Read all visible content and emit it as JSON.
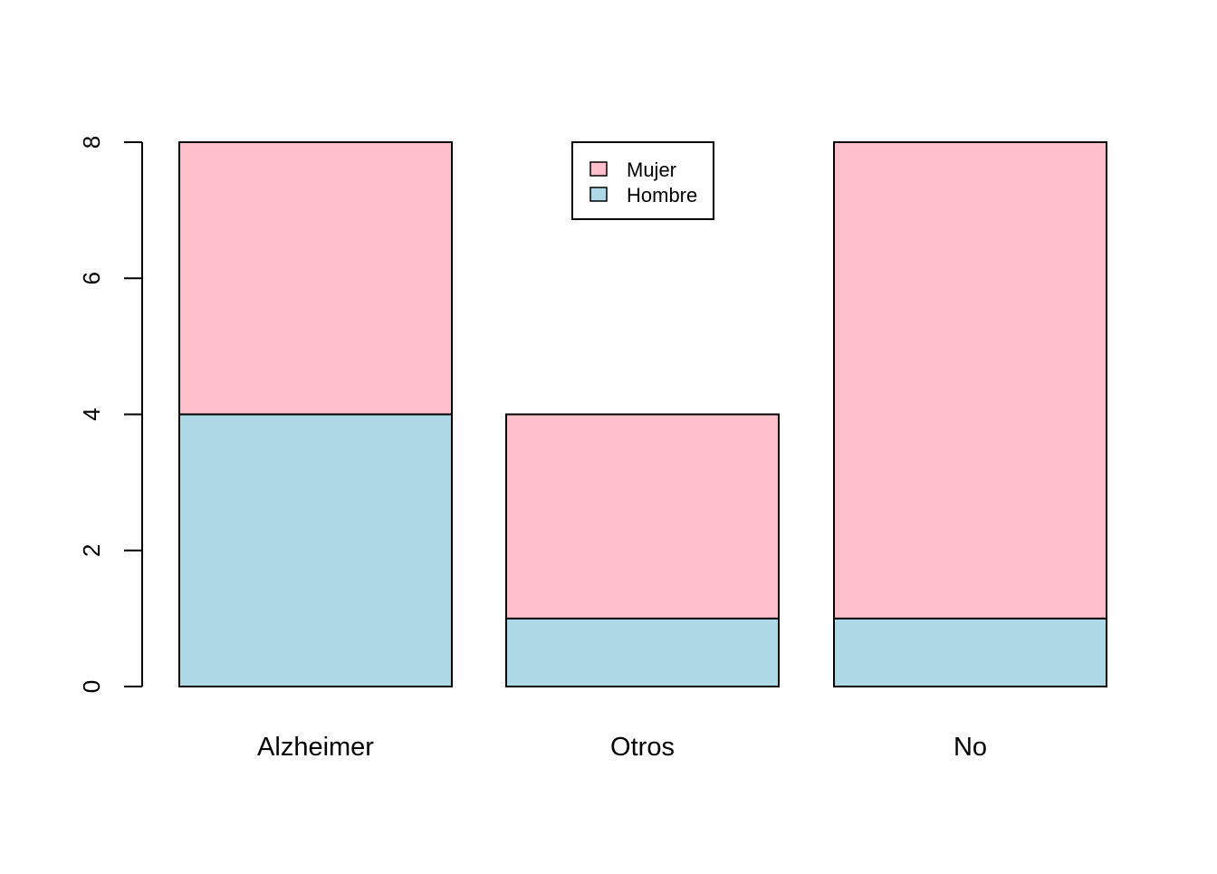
{
  "chart_data": {
    "type": "bar",
    "stacked": true,
    "categories": [
      "Alzheimer",
      "Otros",
      "No"
    ],
    "series": [
      {
        "name": "Hombre",
        "values": [
          4,
          1,
          1
        ],
        "color": "#ADD8E6"
      },
      {
        "name": "Mujer",
        "values": [
          4,
          3,
          7
        ],
        "color": "#FFC0CB"
      }
    ],
    "legend": {
      "position": "top-center",
      "entries": [
        "Mujer",
        "Hombre"
      ]
    },
    "y_ticks": [
      "0",
      "2",
      "4",
      "6",
      "8"
    ],
    "ylim": [
      0,
      8
    ],
    "title": "",
    "xlabel": "",
    "ylabel": "",
    "grid": false
  }
}
